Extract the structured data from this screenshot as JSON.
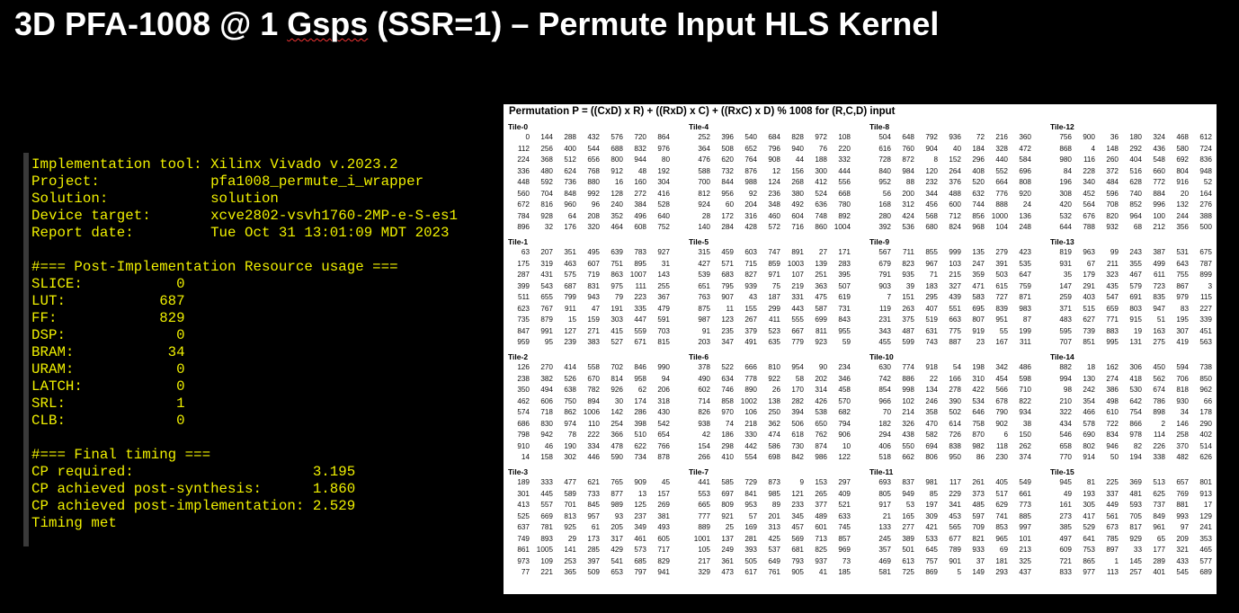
{
  "title_parts": {
    "pre": "3D PFA-1008 @ 1 ",
    "squiggle": "Gsps",
    "post": " (SSR=1) – Permute Input HLS Kernel"
  },
  "report_lines": [
    "Implementation tool: Xilinx Vivado v.2023.2",
    "Project:             pfa1008_permute_i_wrapper",
    "Solution:            solution",
    "Device target:       xcve2802-vsvh1760-2MP-e-S-es1",
    "Report date:         Tue Oct 31 13:01:09 MDT 2023",
    "",
    "#=== Post-Implementation Resource usage ===",
    "SLICE:           0",
    "LUT:           687",
    "FF:            829",
    "DSP:             0",
    "BRAM:           34",
    "URAM:            0",
    "LATCH:           0",
    "SRL:             1",
    "CLB:             0",
    "",
    "#=== Final timing ===",
    "CP required:                     3.195",
    "CP achieved post-synthesis:      1.860",
    "CP achieved post-implementation: 2.529",
    "Timing met"
  ],
  "table_title": "Permutation P = ((CxD) x R) + ((RxD) x C) + ((RxC) x D) % 1008 for (R,C,D) input",
  "tiles": [
    {
      "name": "Tile-0",
      "rows": [
        [
          0,
          144,
          288,
          432,
          576,
          720,
          864
        ],
        [
          112,
          256,
          400,
          544,
          688,
          832,
          976
        ],
        [
          224,
          368,
          512,
          656,
          800,
          944,
          80
        ],
        [
          336,
          480,
          624,
          768,
          912,
          48,
          192
        ],
        [
          448,
          592,
          736,
          880,
          16,
          160,
          304
        ],
        [
          560,
          704,
          848,
          992,
          128,
          272,
          416
        ],
        [
          672,
          816,
          960,
          96,
          240,
          384,
          528
        ],
        [
          784,
          928,
          64,
          208,
          352,
          496,
          640
        ],
        [
          896,
          32,
          176,
          320,
          464,
          608,
          752
        ]
      ]
    },
    {
      "name": "Tile-4",
      "rows": [
        [
          252,
          396,
          540,
          684,
          828,
          972,
          108
        ],
        [
          364,
          508,
          652,
          796,
          940,
          76,
          220
        ],
        [
          476,
          620,
          764,
          908,
          44,
          188,
          332
        ],
        [
          588,
          732,
          876,
          12,
          156,
          300,
          444
        ],
        [
          700,
          844,
          988,
          124,
          268,
          412,
          556
        ],
        [
          812,
          956,
          92,
          236,
          380,
          524,
          668
        ],
        [
          924,
          60,
          204,
          348,
          492,
          636,
          780
        ],
        [
          28,
          172,
          316,
          460,
          604,
          748,
          892
        ],
        [
          140,
          284,
          428,
          572,
          716,
          860,
          1004
        ]
      ]
    },
    {
      "name": "Tile-8",
      "rows": [
        [
          504,
          648,
          792,
          936,
          72,
          216,
          360
        ],
        [
          616,
          760,
          904,
          40,
          184,
          328,
          472
        ],
        [
          728,
          872,
          8,
          152,
          296,
          440,
          584
        ],
        [
          840,
          984,
          120,
          264,
          408,
          552,
          696
        ],
        [
          952,
          88,
          232,
          376,
          520,
          664,
          808
        ],
        [
          56,
          200,
          344,
          488,
          632,
          776,
          920
        ],
        [
          168,
          312,
          456,
          600,
          744,
          888,
          24
        ],
        [
          280,
          424,
          568,
          712,
          856,
          1000,
          136
        ],
        [
          392,
          536,
          680,
          824,
          968,
          104,
          248
        ]
      ]
    },
    {
      "name": "Tile-12",
      "rows": [
        [
          756,
          900,
          36,
          180,
          324,
          468,
          612
        ],
        [
          868,
          4,
          148,
          292,
          436,
          580,
          724
        ],
        [
          980,
          116,
          260,
          404,
          548,
          692,
          836
        ],
        [
          84,
          228,
          372,
          516,
          660,
          804,
          948
        ],
        [
          196,
          340,
          484,
          628,
          772,
          916,
          52
        ],
        [
          308,
          452,
          596,
          740,
          884,
          20,
          164
        ],
        [
          420,
          564,
          708,
          852,
          996,
          132,
          276
        ],
        [
          532,
          676,
          820,
          964,
          100,
          244,
          388
        ],
        [
          644,
          788,
          932,
          68,
          212,
          356,
          500
        ]
      ]
    },
    {
      "name": "Tile-1",
      "rows": [
        [
          63,
          207,
          351,
          495,
          639,
          783,
          927
        ],
        [
          175,
          319,
          463,
          607,
          751,
          895,
          31
        ],
        [
          287,
          431,
          575,
          719,
          863,
          1007,
          143
        ],
        [
          399,
          543,
          687,
          831,
          975,
          111,
          255
        ],
        [
          511,
          655,
          799,
          943,
          79,
          223,
          367
        ],
        [
          623,
          767,
          911,
          47,
          191,
          335,
          479
        ],
        [
          735,
          879,
          15,
          159,
          303,
          447,
          591
        ],
        [
          847,
          991,
          127,
          271,
          415,
          559,
          703
        ],
        [
          959,
          95,
          239,
          383,
          527,
          671,
          815
        ]
      ]
    },
    {
      "name": "Tile-5",
      "rows": [
        [
          315,
          459,
          603,
          747,
          891,
          27,
          171
        ],
        [
          427,
          571,
          715,
          859,
          1003,
          139,
          283
        ],
        [
          539,
          683,
          827,
          971,
          107,
          251,
          395
        ],
        [
          651,
          795,
          939,
          75,
          219,
          363,
          507
        ],
        [
          763,
          907,
          43,
          187,
          331,
          475,
          619
        ],
        [
          875,
          11,
          155,
          299,
          443,
          587,
          731
        ],
        [
          987,
          123,
          267,
          411,
          555,
          699,
          843
        ],
        [
          91,
          235,
          379,
          523,
          667,
          811,
          955
        ],
        [
          203,
          347,
          491,
          635,
          779,
          923,
          59
        ]
      ]
    },
    {
      "name": "Tile-9",
      "rows": [
        [
          567,
          711,
          855,
          999,
          135,
          279,
          423
        ],
        [
          679,
          823,
          967,
          103,
          247,
          391,
          535
        ],
        [
          791,
          935,
          71,
          215,
          359,
          503,
          647
        ],
        [
          903,
          39,
          183,
          327,
          471,
          615,
          759
        ],
        [
          7,
          151,
          295,
          439,
          583,
          727,
          871
        ],
        [
          119,
          263,
          407,
          551,
          695,
          839,
          983
        ],
        [
          231,
          375,
          519,
          663,
          807,
          951,
          87
        ],
        [
          343,
          487,
          631,
          775,
          919,
          55,
          199
        ],
        [
          455,
          599,
          743,
          887,
          23,
          167,
          311
        ]
      ]
    },
    {
      "name": "Tile-13",
      "rows": [
        [
          819,
          963,
          99,
          243,
          387,
          531,
          675
        ],
        [
          931,
          67,
          211,
          355,
          499,
          643,
          787
        ],
        [
          35,
          179,
          323,
          467,
          611,
          755,
          899
        ],
        [
          147,
          291,
          435,
          579,
          723,
          867,
          3
        ],
        [
          259,
          403,
          547,
          691,
          835,
          979,
          115
        ],
        [
          371,
          515,
          659,
          803,
          947,
          83,
          227
        ],
        [
          483,
          627,
          771,
          915,
          51,
          195,
          339
        ],
        [
          595,
          739,
          883,
          19,
          163,
          307,
          451
        ],
        [
          707,
          851,
          995,
          131,
          275,
          419,
          563
        ]
      ]
    },
    {
      "name": "Tile-2",
      "rows": [
        [
          126,
          270,
          414,
          558,
          702,
          846,
          990
        ],
        [
          238,
          382,
          526,
          670,
          814,
          958,
          94
        ],
        [
          350,
          494,
          638,
          782,
          926,
          62,
          206
        ],
        [
          462,
          606,
          750,
          894,
          30,
          174,
          318
        ],
        [
          574,
          718,
          862,
          1006,
          142,
          286,
          430
        ],
        [
          686,
          830,
          974,
          110,
          254,
          398,
          542
        ],
        [
          798,
          942,
          78,
          222,
          366,
          510,
          654
        ],
        [
          910,
          46,
          190,
          334,
          478,
          622,
          766
        ],
        [
          14,
          158,
          302,
          446,
          590,
          734,
          878
        ]
      ]
    },
    {
      "name": "Tile-6",
      "rows": [
        [
          378,
          522,
          666,
          810,
          954,
          90,
          234
        ],
        [
          490,
          634,
          778,
          922,
          58,
          202,
          346
        ],
        [
          602,
          746,
          890,
          26,
          170,
          314,
          458
        ],
        [
          714,
          858,
          1002,
          138,
          282,
          426,
          570
        ],
        [
          826,
          970,
          106,
          250,
          394,
          538,
          682
        ],
        [
          938,
          74,
          218,
          362,
          506,
          650,
          794
        ],
        [
          42,
          186,
          330,
          474,
          618,
          762,
          906
        ],
        [
          154,
          298,
          442,
          586,
          730,
          874,
          10
        ],
        [
          266,
          410,
          554,
          698,
          842,
          986,
          122
        ]
      ]
    },
    {
      "name": "Tile-10",
      "rows": [
        [
          630,
          774,
          918,
          54,
          198,
          342,
          486
        ],
        [
          742,
          886,
          22,
          166,
          310,
          454,
          598
        ],
        [
          854,
          998,
          134,
          278,
          422,
          566,
          710
        ],
        [
          966,
          102,
          246,
          390,
          534,
          678,
          822
        ],
        [
          70,
          214,
          358,
          502,
          646,
          790,
          934
        ],
        [
          182,
          326,
          470,
          614,
          758,
          902,
          38
        ],
        [
          294,
          438,
          582,
          726,
          870,
          6,
          150
        ],
        [
          406,
          550,
          694,
          838,
          982,
          118,
          262
        ],
        [
          518,
          662,
          806,
          950,
          86,
          230,
          374
        ]
      ]
    },
    {
      "name": "Tile-14",
      "rows": [
        [
          882,
          18,
          162,
          306,
          450,
          594,
          738
        ],
        [
          994,
          130,
          274,
          418,
          562,
          706,
          850
        ],
        [
          98,
          242,
          386,
          530,
          674,
          818,
          962
        ],
        [
          210,
          354,
          498,
          642,
          786,
          930,
          66
        ],
        [
          322,
          466,
          610,
          754,
          898,
          34,
          178
        ],
        [
          434,
          578,
          722,
          866,
          2,
          146,
          290
        ],
        [
          546,
          690,
          834,
          978,
          114,
          258,
          402
        ],
        [
          658,
          802,
          946,
          82,
          226,
          370,
          514
        ],
        [
          770,
          914,
          50,
          194,
          338,
          482,
          626
        ]
      ]
    },
    {
      "name": "Tile-3",
      "rows": [
        [
          189,
          333,
          477,
          621,
          765,
          909,
          45
        ],
        [
          301,
          445,
          589,
          733,
          877,
          13,
          157
        ],
        [
          413,
          557,
          701,
          845,
          989,
          125,
          269
        ],
        [
          525,
          669,
          813,
          957,
          93,
          237,
          381
        ],
        [
          637,
          781,
          925,
          61,
          205,
          349,
          493
        ],
        [
          749,
          893,
          29,
          173,
          317,
          461,
          605
        ],
        [
          861,
          1005,
          141,
          285,
          429,
          573,
          717
        ],
        [
          973,
          109,
          253,
          397,
          541,
          685,
          829
        ],
        [
          77,
          221,
          365,
          509,
          653,
          797,
          941
        ]
      ]
    },
    {
      "name": "Tile-7",
      "rows": [
        [
          441,
          585,
          729,
          873,
          9,
          153,
          297
        ],
        [
          553,
          697,
          841,
          985,
          121,
          265,
          409
        ],
        [
          665,
          809,
          953,
          89,
          233,
          377,
          521
        ],
        [
          777,
          921,
          57,
          201,
          345,
          489,
          633
        ],
        [
          889,
          25,
          169,
          313,
          457,
          601,
          745
        ],
        [
          1001,
          137,
          281,
          425,
          569,
          713,
          857
        ],
        [
          105,
          249,
          393,
          537,
          681,
          825,
          969
        ],
        [
          217,
          361,
          505,
          649,
          793,
          937,
          73
        ],
        [
          329,
          473,
          617,
          761,
          905,
          41,
          185
        ]
      ]
    },
    {
      "name": "Tile-11",
      "rows": [
        [
          693,
          837,
          981,
          117,
          261,
          405,
          549
        ],
        [
          805,
          949,
          85,
          229,
          373,
          517,
          661
        ],
        [
          917,
          53,
          197,
          341,
          485,
          629,
          773
        ],
        [
          21,
          165,
          309,
          453,
          597,
          741,
          885
        ],
        [
          133,
          277,
          421,
          565,
          709,
          853,
          997
        ],
        [
          245,
          389,
          533,
          677,
          821,
          965,
          101
        ],
        [
          357,
          501,
          645,
          789,
          933,
          69,
          213
        ],
        [
          469,
          613,
          757,
          901,
          37,
          181,
          325
        ],
        [
          581,
          725,
          869,
          5,
          149,
          293,
          437
        ]
      ]
    },
    {
      "name": "Tile-15",
      "rows": [
        [
          945,
          81,
          225,
          369,
          513,
          657,
          801
        ],
        [
          49,
          193,
          337,
          481,
          625,
          769,
          913
        ],
        [
          161,
          305,
          449,
          593,
          737,
          881,
          17
        ],
        [
          273,
          417,
          561,
          705,
          849,
          993,
          129
        ],
        [
          385,
          529,
          673,
          817,
          961,
          97,
          241
        ],
        [
          497,
          641,
          785,
          929,
          65,
          209,
          353
        ],
        [
          609,
          753,
          897,
          33,
          177,
          321,
          465
        ],
        [
          721,
          865,
          1,
          145,
          289,
          433,
          577
        ],
        [
          833,
          977,
          113,
          257,
          401,
          545,
          689
        ]
      ]
    }
  ]
}
